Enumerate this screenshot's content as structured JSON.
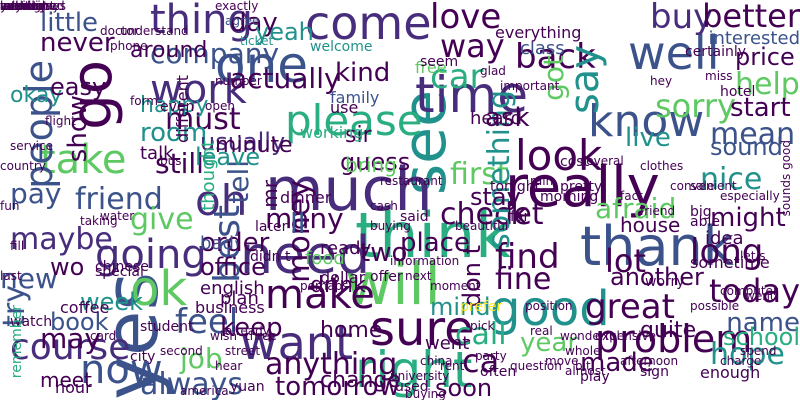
{
  "palette": [
    "#440154",
    "#472d7b",
    "#3b528b",
    "#2c728e",
    "#21918c",
    "#28ae80",
    "#5ec962",
    "#addc30",
    "#fde725"
  ],
  "words": [
    {
      "text": "well",
      "color": "#3b528b"
    },
    {
      "text": "know",
      "color": "#3b528b"
    },
    {
      "text": "thank",
      "color": "#3b528b"
    },
    {
      "text": "think",
      "color": "#28ae80"
    },
    {
      "text": "really",
      "color": "#440154"
    },
    {
      "text": "will",
      "color": "#5ec962"
    },
    {
      "text": "right",
      "color": "#28ae80"
    },
    {
      "text": "one",
      "color": "#3b528b"
    },
    {
      "text": "see",
      "color": "#21918c"
    },
    {
      "text": "go",
      "color": "#440154"
    },
    {
      "text": "time",
      "color": "#472d7b"
    },
    {
      "text": "much",
      "color": "#472d7b"
    },
    {
      "text": "good",
      "color": "#21918c"
    },
    {
      "text": "take",
      "color": "#5ec962"
    },
    {
      "text": "need",
      "color": "#472d7b"
    },
    {
      "text": "want",
      "color": "#472d7b"
    },
    {
      "text": "yes",
      "color": "#3b528b"
    },
    {
      "text": "ok",
      "color": "#5ec962"
    },
    {
      "text": "going",
      "color": "#472d7b"
    },
    {
      "text": "sure",
      "color": "#440154"
    },
    {
      "text": "come",
      "color": "#472d7b"
    },
    {
      "text": "oh",
      "color": "#472d7b"
    },
    {
      "text": "please",
      "color": "#28ae80"
    },
    {
      "text": "look",
      "color": "#440154"
    },
    {
      "text": "thing",
      "color": "#472d7b"
    },
    {
      "text": "love",
      "color": "#440154"
    },
    {
      "text": "back",
      "color": "#440154"
    },
    {
      "text": "say",
      "color": "#21918c"
    },
    {
      "text": "buy",
      "color": "#472d7b"
    },
    {
      "text": "better",
      "color": "#440154"
    },
    {
      "text": "day",
      "color": "#440154"
    },
    {
      "text": "way",
      "color": "#440154"
    },
    {
      "text": "work",
      "color": "#472d7b"
    },
    {
      "text": "people",
      "color": "#3b528b"
    },
    {
      "text": "now",
      "color": "#3b528b"
    },
    {
      "text": "make",
      "color": "#440154"
    },
    {
      "text": "course",
      "color": "#472d7b"
    },
    {
      "text": "problem",
      "color": "#440154"
    },
    {
      "text": "today",
      "color": "#440154"
    },
    {
      "text": "hope",
      "color": "#21918c"
    },
    {
      "text": "great",
      "color": "#440154"
    },
    {
      "text": "find",
      "color": "#440154"
    },
    {
      "text": "let",
      "color": "#440154"
    },
    {
      "text": "long",
      "color": "#440154"
    },
    {
      "text": "lot",
      "color": "#440154"
    },
    {
      "text": "fine",
      "color": "#440154"
    },
    {
      "text": "check",
      "color": "#440154"
    },
    {
      "text": "first",
      "color": "#5ec962"
    },
    {
      "text": "mean",
      "color": "#3b528b"
    },
    {
      "text": "sorry",
      "color": "#5ec962"
    },
    {
      "text": "help",
      "color": "#5ec962"
    },
    {
      "text": "nice",
      "color": "#21918c"
    },
    {
      "text": "feel",
      "color": "#3b528b"
    },
    {
      "text": "call",
      "color": "#28ae80"
    },
    {
      "text": "always",
      "color": "#3b528b"
    },
    {
      "text": "anything",
      "color": "#440154"
    },
    {
      "text": "tomorrow",
      "color": "#440154"
    },
    {
      "text": "something",
      "color": "#21918c"
    },
    {
      "text": "kind",
      "color": "#440154"
    },
    {
      "text": "car",
      "color": "#28ae80"
    },
    {
      "text": "friend",
      "color": "#3b528b"
    },
    {
      "text": "money",
      "color": "#440154"
    },
    {
      "text": "guess",
      "color": "#440154"
    },
    {
      "text": "still",
      "color": "#440154"
    },
    {
      "text": "give",
      "color": "#5ec962"
    },
    {
      "text": "maybe",
      "color": "#472d7b"
    },
    {
      "text": "pay",
      "color": "#3b528b"
    },
    {
      "text": "new",
      "color": "#3b528b"
    },
    {
      "text": "may",
      "color": "#440154"
    },
    {
      "text": "try",
      "color": "#3b528b"
    },
    {
      "text": "book",
      "color": "#3b528b"
    },
    {
      "text": "job",
      "color": "#5ec962"
    },
    {
      "text": "many",
      "color": "#440154"
    },
    {
      "text": "best",
      "color": "#3b528b"
    },
    {
      "text": "ask",
      "color": "#440154"
    },
    {
      "text": "must",
      "color": "#440154"
    },
    {
      "text": "room",
      "color": "#21918c"
    },
    {
      "text": "company",
      "color": "#3b528b"
    },
    {
      "text": "around",
      "color": "#440154"
    },
    {
      "text": "never",
      "color": "#440154"
    },
    {
      "text": "little",
      "color": "#3b528b"
    },
    {
      "text": "actually",
      "color": "#440154"
    },
    {
      "text": "yeah",
      "color": "#21918c"
    },
    {
      "text": "tell",
      "color": "#3b528b"
    },
    {
      "text": "got",
      "color": "#5ec962"
    },
    {
      "text": "price",
      "color": "#440154"
    },
    {
      "text": "name",
      "color": "#3b528b"
    },
    {
      "text": "start",
      "color": "#440154"
    },
    {
      "text": "sound",
      "color": "#3b528b"
    },
    {
      "text": "might",
      "color": "#440154"
    },
    {
      "text": "ca",
      "color": "#440154"
    },
    {
      "text": "year",
      "color": "#5ec962"
    },
    {
      "text": "made",
      "color": "#440154"
    },
    {
      "text": "afraid",
      "color": "#5ec962"
    },
    {
      "text": "soon",
      "color": "#440154"
    },
    {
      "text": "school",
      "color": "#28ae80"
    },
    {
      "text": "quite",
      "color": "#440154"
    },
    {
      "text": "another",
      "color": "#440154"
    },
    {
      "text": "place",
      "color": "#440154"
    },
    {
      "text": "house",
      "color": "#440154"
    },
    {
      "text": "two",
      "color": "#440154"
    },
    {
      "text": "keep",
      "color": "#440154"
    },
    {
      "text": "home",
      "color": "#440154"
    },
    {
      "text": "mind",
      "color": "#21918c"
    },
    {
      "text": "order",
      "color": "#440154"
    },
    {
      "text": "office",
      "color": "#440154"
    },
    {
      "text": "leave",
      "color": "#21918c"
    },
    {
      "text": "stay",
      "color": "#440154"
    },
    {
      "text": "live",
      "color": "#21918c"
    },
    {
      "text": "show",
      "color": "#440154"
    },
    {
      "text": "okay",
      "color": "#21918c"
    },
    {
      "text": "usually",
      "color": "#472d7b"
    },
    {
      "text": "sir",
      "color": "#440154"
    },
    {
      "text": "bring",
      "color": "#5ec962"
    },
    {
      "text": "week",
      "color": "#21918c"
    },
    {
      "text": "bad",
      "color": "#3b528b"
    },
    {
      "text": "happy",
      "color": "#21918c"
    },
    {
      "text": "drink",
      "color": "#440154"
    },
    {
      "text": "food",
      "color": "#5ec962"
    },
    {
      "text": "ready",
      "color": "#440154"
    },
    {
      "text": "dollar",
      "color": "#440154"
    },
    {
      "text": "english",
      "color": "#440154"
    },
    {
      "text": "business",
      "color": "#440154"
    },
    {
      "text": "plan",
      "color": "#440154"
    },
    {
      "text": "easy",
      "color": "#440154"
    },
    {
      "text": "wo",
      "color": "#440154"
    },
    {
      "text": "ll",
      "color": "#3b528b"
    },
    {
      "text": "don t",
      "color": "#440154"
    },
    {
      "text": "use",
      "color": "#440154"
    },
    {
      "text": "minute",
      "color": "#440154"
    },
    {
      "text": "change",
      "color": "#440154"
    },
    {
      "text": "meet",
      "color": "#440154"
    },
    {
      "text": "hour",
      "color": "#440154"
    },
    {
      "text": "watch",
      "color": "#440154"
    },
    {
      "text": "dinner",
      "color": "#440154"
    },
    {
      "text": "yuan",
      "color": "#440154"
    },
    {
      "text": "used",
      "color": "#440154"
    },
    {
      "text": "often",
      "color": "#440154"
    },
    {
      "text": "mr",
      "color": "#440154"
    },
    {
      "text": "thought",
      "color": "#28ae80"
    },
    {
      "text": "talk",
      "color": "#440154"
    },
    {
      "text": "different",
      "color": "#440154"
    },
    {
      "text": "working",
      "color": "#28ae80"
    },
    {
      "text": "hotel",
      "color": "#440154"
    },
    {
      "text": "class",
      "color": "#3b528b"
    },
    {
      "text": "everything",
      "color": "#440154"
    },
    {
      "text": "interested",
      "color": "#3b528b"
    },
    {
      "text": "certainly",
      "color": "#440154"
    },
    {
      "text": "heard",
      "color": "#440154"
    },
    {
      "text": "free",
      "color": "#5ec962"
    },
    {
      "text": "seem",
      "color": "#440154"
    },
    {
      "text": "family",
      "color": "#3b528b"
    },
    {
      "text": "welcome",
      "color": "#21918c"
    },
    {
      "text": "exactly",
      "color": "#440154"
    },
    {
      "text": "understand",
      "color": "#440154"
    },
    {
      "text": "agree",
      "color": "#3b528b"
    },
    {
      "text": "ticket",
      "color": "#21918c"
    },
    {
      "text": "doctor",
      "color": "#440154"
    },
    {
      "text": "phone",
      "color": "#440154"
    },
    {
      "text": "big",
      "color": "#440154"
    },
    {
      "text": "idea",
      "color": "#440154"
    },
    {
      "text": "able",
      "color": "#440154"
    },
    {
      "text": "sometime",
      "color": "#440154"
    },
    {
      "text": "worry",
      "color": "#440154"
    },
    {
      "text": "enough",
      "color": "#440154"
    },
    {
      "text": "sign",
      "color": "#440154"
    },
    {
      "text": "went",
      "color": "#440154"
    },
    {
      "text": "play",
      "color": "#440154"
    },
    {
      "text": "chinese",
      "color": "#440154"
    },
    {
      "text": "remember",
      "color": "#28ae80"
    },
    {
      "text": "last",
      "color": "#440154"
    },
    {
      "text": "city",
      "color": "#440154"
    },
    {
      "text": "student",
      "color": "#440154"
    },
    {
      "text": "even",
      "color": "#440154"
    },
    {
      "text": "pretty",
      "color": "#440154"
    },
    {
      "text": "tonight",
      "color": "#440154"
    },
    {
      "text": "cost",
      "color": "#440154"
    },
    {
      "text": "later",
      "color": "#440154"
    },
    {
      "text": "said",
      "color": "#440154"
    },
    {
      "text": "didn t",
      "color": "#440154"
    },
    {
      "text": "beautiful",
      "color": "#440154"
    },
    {
      "text": "morning",
      "color": "#440154"
    },
    {
      "text": "far",
      "color": "#440154"
    },
    {
      "text": "offer",
      "color": "#440154"
    },
    {
      "text": "information",
      "color": "#440154"
    },
    {
      "text": "next",
      "color": "#440154"
    },
    {
      "text": "cash",
      "color": "#440154"
    },
    {
      "text": "buying",
      "color": "#440154"
    },
    {
      "text": "special",
      "color": "#440154"
    },
    {
      "text": "fun",
      "color": "#440154"
    },
    {
      "text": "fill",
      "color": "#440154"
    },
    {
      "text": "form",
      "color": "#440154"
    },
    {
      "text": "bus",
      "color": "#440154"
    },
    {
      "text": "party",
      "color": "#440154"
    },
    {
      "text": "prefer",
      "color": "#fde725"
    },
    {
      "text": "expensive",
      "color": "#440154"
    },
    {
      "text": "position",
      "color": "#440154"
    },
    {
      "text": "coffee",
      "color": "#440154"
    },
    {
      "text": "water",
      "color": "#440154"
    },
    {
      "text": "taking",
      "color": "#440154"
    },
    {
      "text": "already",
      "color": "#440154"
    },
    {
      "text": "wish",
      "color": "#440154"
    },
    {
      "text": "street",
      "color": "#440154"
    },
    {
      "text": "hear",
      "color": "#440154"
    },
    {
      "text": "second",
      "color": "#440154"
    },
    {
      "text": "card",
      "color": "#440154"
    },
    {
      "text": "three",
      "color": "#440154"
    },
    {
      "text": "pick",
      "color": "#440154"
    },
    {
      "text": "move",
      "color": "#440154"
    },
    {
      "text": "moment",
      "color": "#440154"
    },
    {
      "text": "afternoon",
      "color": "#440154"
    },
    {
      "text": "whole",
      "color": "#440154"
    },
    {
      "text": "possible",
      "color": "#440154"
    },
    {
      "text": "charge",
      "color": "#440154"
    },
    {
      "text": "service",
      "color": "#440154"
    },
    {
      "text": "country",
      "color": "#440154"
    },
    {
      "text": "flight",
      "color": "#440154"
    },
    {
      "text": "number",
      "color": "#440154"
    },
    {
      "text": "open",
      "color": "#440154"
    },
    {
      "text": "important",
      "color": "#440154"
    },
    {
      "text": "glad",
      "color": "#440154"
    },
    {
      "text": "perhaps",
      "color": "#440154"
    },
    {
      "text": "several",
      "color": "#440154"
    },
    {
      "text": "clothes",
      "color": "#440154"
    },
    {
      "text": "hey",
      "color": "#440154"
    },
    {
      "text": "miss",
      "color": "#440154"
    },
    {
      "text": "sale",
      "color": "#440154"
    },
    {
      "text": "convenient",
      "color": "#440154"
    },
    {
      "text": "especially",
      "color": "#440154"
    },
    {
      "text": "restaurant",
      "color": "#440154"
    },
    {
      "text": "computer",
      "color": "#440154"
    },
    {
      "text": "fact",
      "color": "#440154"
    },
    {
      "text": "let s",
      "color": "#440154"
    },
    {
      "text": "sounds good",
      "color": "#440154"
    },
    {
      "text": "friend",
      "color": "#440154"
    },
    {
      "text": "rain",
      "color": "#440154"
    },
    {
      "text": "wonderful",
      "color": "#440154"
    },
    {
      "text": "china",
      "color": "#440154"
    },
    {
      "text": "rent",
      "color": "#440154"
    },
    {
      "text": "buying",
      "color": "#440154"
    },
    {
      "text": "america",
      "color": "#440154"
    },
    {
      "text": "university",
      "color": "#440154"
    },
    {
      "text": "question",
      "color": "#440154"
    },
    {
      "text": "real",
      "color": "#440154"
    },
    {
      "text": "went",
      "color": "#440154"
    },
    {
      "text": "spend",
      "color": "#440154"
    },
    {
      "text": "almost",
      "color": "#440154"
    },
    {
      "text": "bit",
      "color": "#440154"
    },
    {
      "text": "nothing",
      "color": "#440154"
    },
    {
      "text": "account",
      "color": "#440154"
    },
    {
      "text": "mentioned",
      "color": "#440154"
    },
    {
      "text": "yesterday",
      "color": "#440154"
    },
    {
      "text": "interview",
      "color": "#440154"
    },
    {
      "text": "excellent",
      "color": "#440154"
    },
    {
      "text": "talking",
      "color": "#440154"
    },
    {
      "text": "anyway",
      "color": "#440154"
    },
    {
      "text": "sometimes",
      "color": "#440154"
    },
    {
      "text": "went",
      "color": "#440154"
    }
  ]
}
